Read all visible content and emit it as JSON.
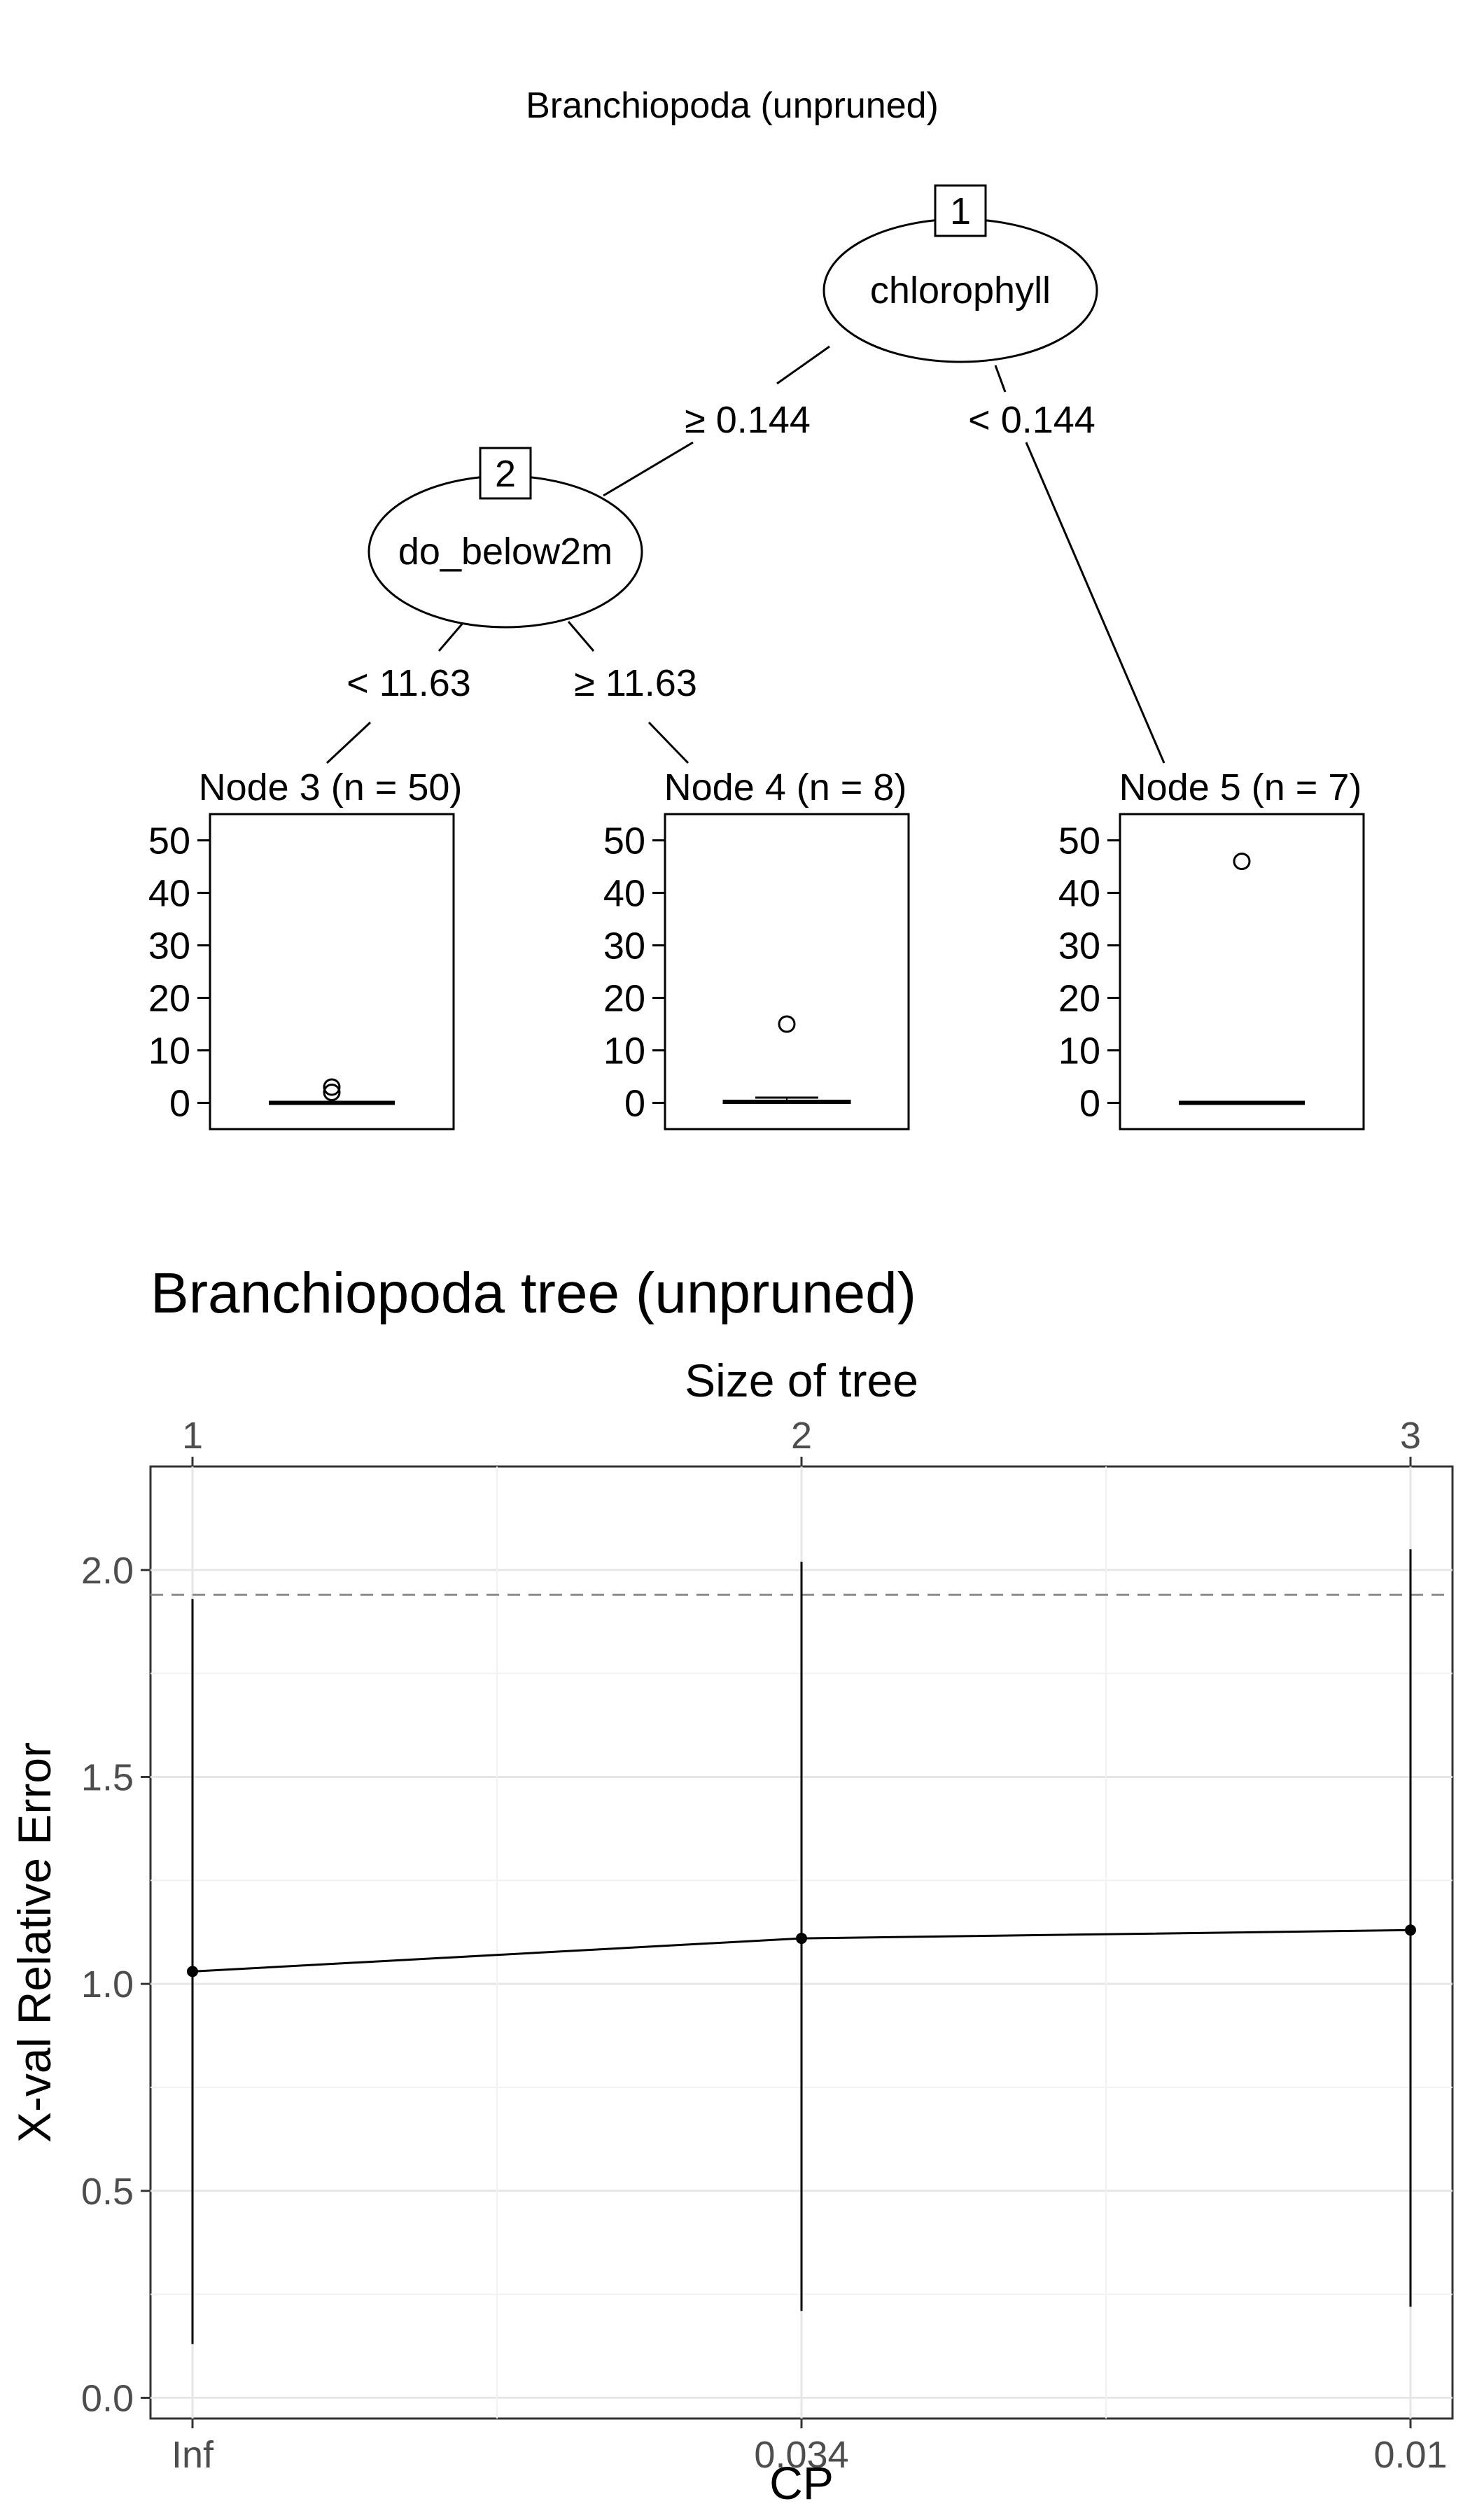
{
  "chart_data": [
    {
      "type": "tree",
      "title": "Branchiopoda (unpruned)",
      "nodes": [
        {
          "id": "1",
          "label": "chlorophyll"
        },
        {
          "id": "2",
          "label": "do_below2m"
        }
      ],
      "edges": [
        {
          "from": "1",
          "to": "2",
          "label": "≥ 0.144"
        },
        {
          "from": "1",
          "to": "5",
          "label": "< 0.144"
        },
        {
          "from": "2",
          "to": "3",
          "label": "< 11.63"
        },
        {
          "from": "2",
          "to": "4",
          "label": "≥ 11.63"
        }
      ],
      "terminal_nodes": [
        {
          "id": "3",
          "label": "Node 3 (n = 50)",
          "median": 0,
          "q1": 0,
          "q3": 0,
          "whisker_low": 0,
          "whisker_high": 0,
          "outliers": [
            2,
            3
          ]
        },
        {
          "id": "4",
          "label": "Node 4 (n = 8)",
          "median": 0.2,
          "q1": 0,
          "q3": 0.4,
          "whisker_low": 0,
          "whisker_high": 1,
          "outliers": [
            15
          ]
        },
        {
          "id": "5",
          "label": "Node 5 (n = 7)",
          "median": 0,
          "q1": 0,
          "q3": 0,
          "whisker_low": 0,
          "whisker_high": 0,
          "outliers": [
            46
          ]
        }
      ],
      "y_ticks": [
        "0",
        "10",
        "20",
        "30",
        "40",
        "50"
      ],
      "ylim": [
        -5,
        55
      ]
    },
    {
      "type": "line",
      "title": "Branchiopoda tree (unpruned)",
      "xlabel": "CP",
      "ylabel": "X-val Relative Error",
      "top_axis_label": "Size of tree",
      "x_labels": [
        "Inf",
        "0.034",
        "0.01"
      ],
      "top_labels": [
        "1",
        "2",
        "3"
      ],
      "y_ticks": [
        "0.0",
        "0.5",
        "1.0",
        "1.5",
        "2.0"
      ],
      "ylim": [
        -0.05,
        2.25
      ],
      "points": [
        {
          "size": 1,
          "cp": "Inf",
          "xerror": 1.03,
          "lower": 0.13,
          "upper": 1.93
        },
        {
          "size": 2,
          "cp": "0.034",
          "xerror": 1.11,
          "lower": 0.21,
          "upper": 2.02
        },
        {
          "size": 3,
          "cp": "0.01",
          "xerror": 1.13,
          "lower": 0.22,
          "upper": 2.05
        }
      ],
      "reference_line": 1.94,
      "grid": true
    }
  ]
}
